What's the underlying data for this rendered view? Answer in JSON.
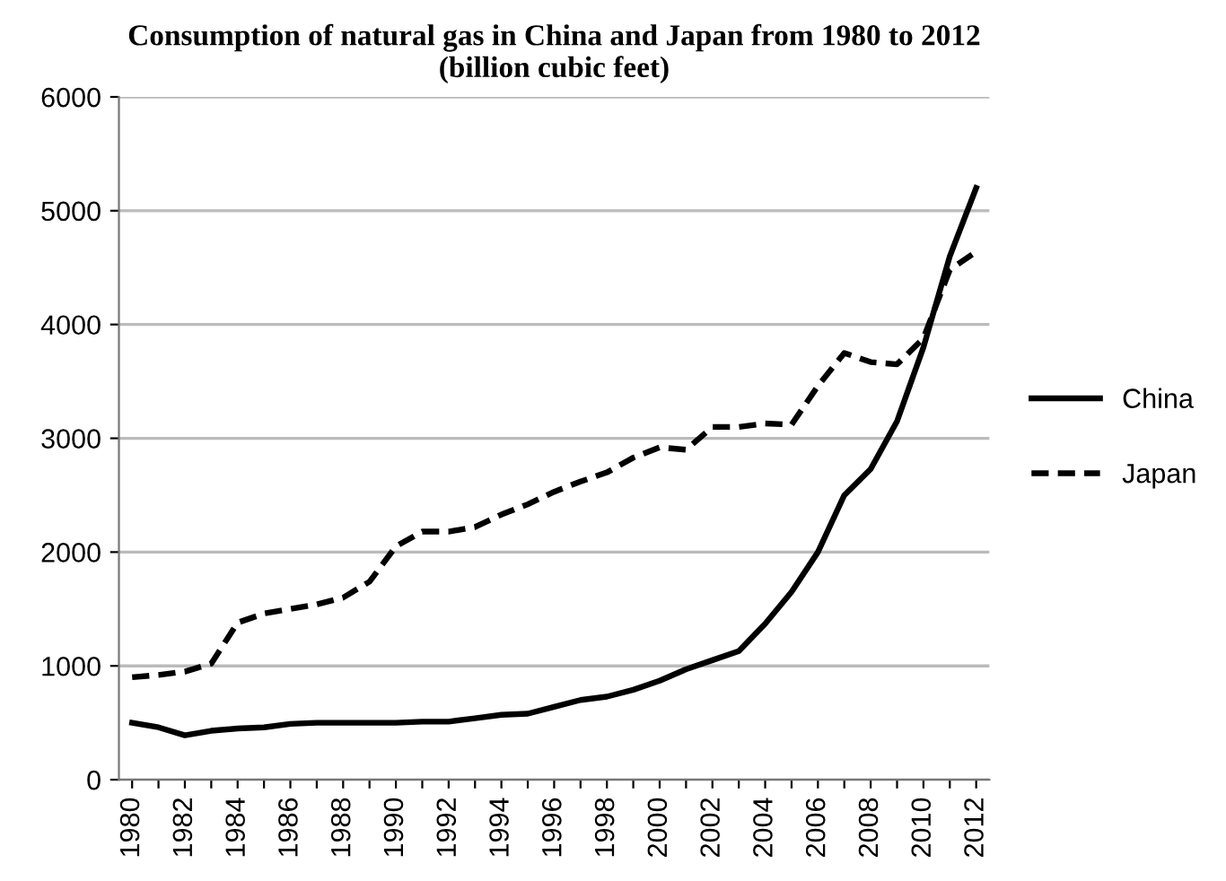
{
  "chart_data": {
    "type": "line",
    "title": "Consumption of natural gas in China and Japan from 1980 to 2012\n(billion cubic feet)",
    "categories": [
      "1980",
      null,
      "1982",
      null,
      "1984",
      null,
      "1986",
      null,
      "1988",
      null,
      "1990",
      null,
      "1992",
      null,
      "1994",
      null,
      "1996",
      null,
      "1998",
      null,
      "2000",
      null,
      "2002",
      null,
      "2004",
      null,
      "2006",
      null,
      "2008",
      null,
      "2010",
      null,
      "2012"
    ],
    "series": [
      {
        "name": "China",
        "color": "#000000",
        "line_style": "solid",
        "values": [
          500,
          460,
          390,
          430,
          450,
          460,
          490,
          500,
          500,
          500,
          500,
          510,
          510,
          540,
          570,
          580,
          640,
          700,
          730,
          790,
          870,
          970,
          1050,
          1130,
          1370,
          1650,
          2000,
          2500,
          2730,
          3150,
          3800,
          4600,
          5200
        ]
      },
      {
        "name": "Japan",
        "color": "#000000",
        "line_style": "dashed",
        "values": [
          900,
          920,
          950,
          1020,
          1380,
          1460,
          1500,
          1540,
          1600,
          1740,
          2050,
          2180,
          2180,
          2220,
          2330,
          2420,
          2530,
          2620,
          2700,
          2830,
          2920,
          2900,
          3100,
          3100,
          3130,
          3120,
          3460,
          3750,
          3670,
          3650,
          3880,
          4480,
          4640
        ]
      }
    ],
    "ylim": [
      0,
      6000
    ],
    "yticks": [
      0,
      1000,
      2000,
      3000,
      4000,
      5000,
      6000
    ],
    "grid": "y",
    "legend": "right"
  }
}
